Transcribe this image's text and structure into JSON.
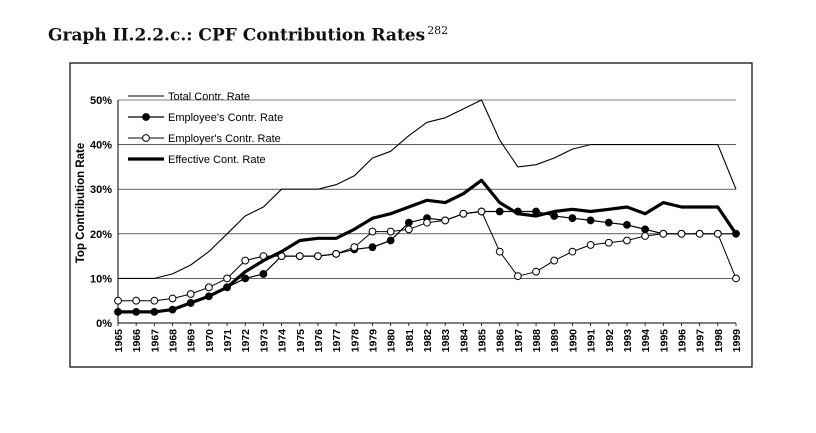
{
  "page": {
    "title": "Graph II.2.2.c.: CPF Contribution Rates",
    "footnote": "282"
  },
  "chart_data": {
    "type": "line",
    "title": "",
    "xlabel": "",
    "ylabel": "Top Contribution Rate",
    "ylim": [
      0,
      50
    ],
    "yticks": [
      "0%",
      "10%",
      "20%",
      "30%",
      "40%",
      "50%"
    ],
    "grid": true,
    "legend_position": "top-left",
    "x": [
      "1965",
      "1966",
      "1967",
      "1968",
      "1969",
      "1970",
      "1971",
      "1972",
      "1973",
      "1974",
      "1975",
      "1976",
      "1977",
      "1978",
      "1979",
      "1980",
      "1981",
      "1982",
      "1983",
      "1984",
      "1985",
      "1986",
      "1987",
      "1988",
      "1989",
      "1990",
      "1991",
      "1992",
      "1993",
      "1994",
      "1995",
      "1996",
      "1997",
      "1998",
      "1999"
    ],
    "series": [
      {
        "name": "Total Contr. Rate",
        "style": "thin-line",
        "values": [
          10,
          10,
          10,
          11,
          13,
          16,
          20,
          24,
          26,
          30,
          30,
          30,
          31,
          33,
          37,
          38.5,
          42,
          45,
          46,
          48,
          50,
          41,
          35,
          35.5,
          37,
          39,
          40,
          40,
          40,
          40,
          40,
          40,
          40,
          40,
          30
        ]
      },
      {
        "name": "Employee's Contr. Rate",
        "style": "line-filled-dot",
        "values": [
          2.5,
          2.5,
          2.5,
          3,
          4.5,
          6,
          8,
          10,
          11,
          15,
          15,
          15,
          15.5,
          16.5,
          17,
          18.5,
          22.5,
          23.5,
          23,
          24.5,
          25,
          25,
          25,
          25,
          24,
          23.5,
          23,
          22.5,
          22,
          21,
          20,
          20,
          20,
          20,
          20
        ]
      },
      {
        "name": "Employer's Contr. Rate",
        "style": "line-open-dot",
        "values": [
          5,
          5,
          5,
          5.5,
          6.5,
          8,
          10,
          14,
          15,
          15,
          15,
          15,
          15.5,
          17,
          20.5,
          20.5,
          21,
          22.5,
          23,
          24.5,
          25,
          16,
          10.5,
          11.5,
          14,
          16,
          17.5,
          18,
          18.5,
          19.5,
          20,
          20,
          20,
          20,
          10
        ]
      },
      {
        "name": "Effective Cont. Rate",
        "style": "thick-line",
        "values": [
          2.5,
          2.5,
          2.5,
          3,
          4.5,
          6,
          8,
          11.5,
          14,
          16,
          18.5,
          19,
          19,
          21,
          23.5,
          24.5,
          26,
          27.5,
          27,
          29,
          32,
          27,
          24.5,
          24,
          25,
          25.5,
          25,
          25.5,
          26,
          24.5,
          27,
          26,
          26,
          26,
          20
        ]
      }
    ]
  }
}
